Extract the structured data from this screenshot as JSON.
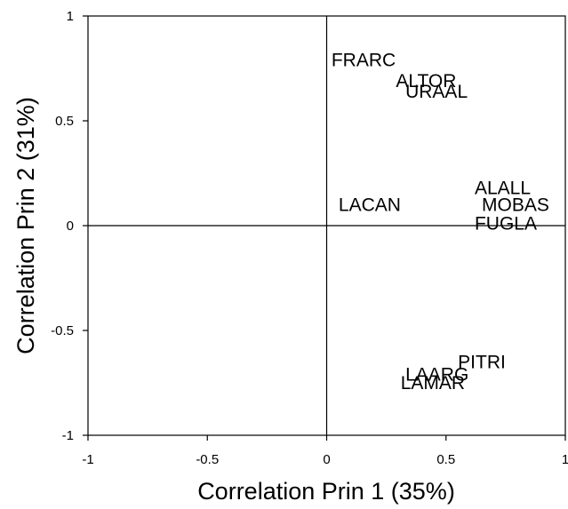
{
  "chart_data": {
    "type": "scatter",
    "title": "",
    "xlabel": "Correlation Prin 1 (35%)",
    "ylabel": "Correlation Prin 2 (31%)",
    "xlim": [
      -1,
      1
    ],
    "ylim": [
      -1,
      1
    ],
    "grid": false,
    "reference_lines": {
      "x": 0,
      "y": 0
    },
    "x_ticks": [
      "-1",
      "-0.5",
      "0",
      "0.5",
      "1"
    ],
    "y_ticks": [
      "1",
      "0.5",
      "0",
      "-0.5",
      "-1"
    ],
    "points": [
      {
        "label": "FRARC",
        "x": 0.02,
        "y": 0.79
      },
      {
        "label": "ALTOR",
        "x": 0.29,
        "y": 0.69
      },
      {
        "label": "URAAL",
        "x": 0.33,
        "y": 0.64
      },
      {
        "label": "ALALL",
        "x": 0.62,
        "y": 0.18
      },
      {
        "label": "MOBAS",
        "x": 0.65,
        "y": 0.1
      },
      {
        "label": "LACAN",
        "x": 0.05,
        "y": 0.1
      },
      {
        "label": "FUGLA",
        "x": 0.62,
        "y": 0.01
      },
      {
        "label": "PITRI",
        "x": 0.55,
        "y": -0.65
      },
      {
        "label": "LAARG",
        "x": 0.33,
        "y": -0.71
      },
      {
        "label": "LAMAR",
        "x": 0.31,
        "y": -0.75
      }
    ]
  }
}
